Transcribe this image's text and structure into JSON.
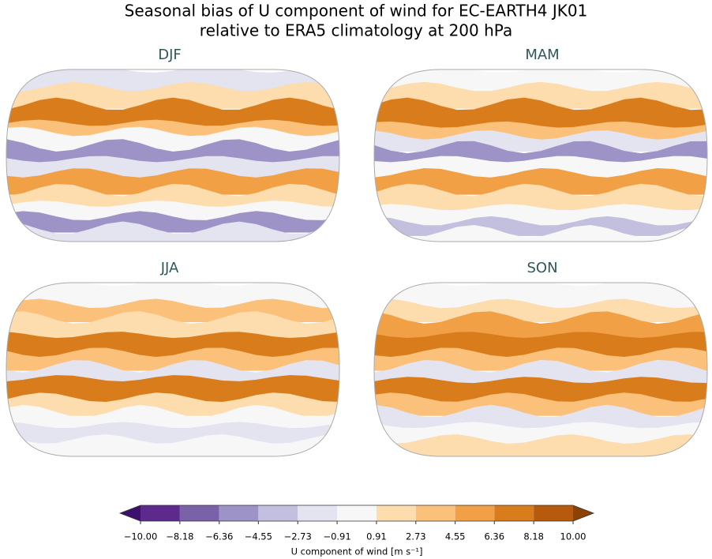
{
  "title": [
    "Seasonal bias of U component of wind for EC-EARTH4 JK01",
    "relative to ERA5 climatology at 200 hPa"
  ],
  "panels": [
    {
      "title": "DJF"
    },
    {
      "title": "MAM"
    },
    {
      "title": "JJA"
    },
    {
      "title": "SON"
    }
  ],
  "colorbar": {
    "label": "U component of wind [m s⁻¹]",
    "lim": [
      -10,
      10
    ],
    "ticks": [
      {
        "value": -10,
        "label": "−10.00"
      },
      {
        "value": -8.18,
        "label": "−8.18"
      },
      {
        "value": -6.36,
        "label": "−6.36"
      },
      {
        "value": -4.55,
        "label": "−4.55"
      },
      {
        "value": -2.73,
        "label": "−2.73"
      },
      {
        "value": -0.91,
        "label": "−0.91"
      },
      0.91,
      2.73,
      4.55,
      6.36,
      8.18,
      {
        "value": 10,
        "label": "10.00"
      }
    ],
    "colors": [
      "#5b2a8c",
      "#7a62a8",
      "#9d93c6",
      "#c3bfde",
      "#e4e3f0",
      "#f7f7f7",
      "#fddcad",
      "#fbc17b",
      "#f1a046",
      "#d97d1c",
      "#b55b0b"
    ],
    "extend_colors": [
      "#3d106e",
      "#8a4206"
    ]
  }
}
